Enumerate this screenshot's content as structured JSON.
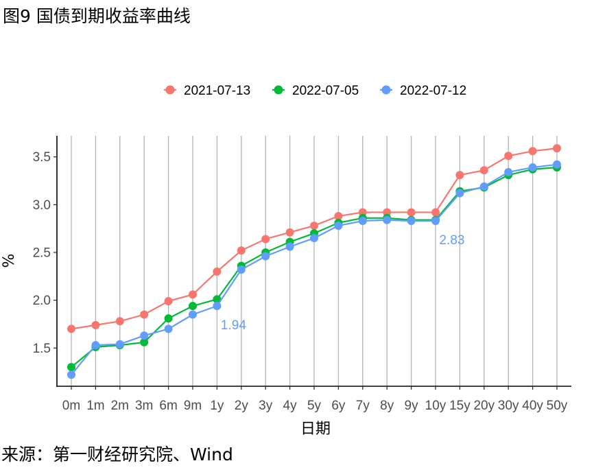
{
  "title": "图9 国债到期收益率曲线",
  "source": "来源：第一财经研究院、Wind",
  "colors": {
    "s2021": "#F8766D",
    "s20220705": "#00BA38",
    "s20220712": "#619CFF",
    "grid": "#b3b3b3",
    "axis": "#000000"
  },
  "chart_data": {
    "type": "line",
    "title": "图9 国债到期收益率曲线",
    "xlabel": "日期",
    "ylabel": "%",
    "categories": [
      "0m",
      "1m",
      "2m",
      "3m",
      "6m",
      "9m",
      "1y",
      "2y",
      "3y",
      "4y",
      "5y",
      "6y",
      "7y",
      "8y",
      "9y",
      "10y",
      "15y",
      "20y",
      "30y",
      "40y",
      "50y"
    ],
    "ylim": [
      1.1,
      3.72
    ],
    "yticks": [
      "1.5",
      "2.0",
      "2.5",
      "3.0",
      "3.5"
    ],
    "grid": "vertical",
    "legend": "top",
    "series": [
      {
        "name": "2021-07-13",
        "color": "#F8766D",
        "values": [
          1.7,
          1.74,
          1.78,
          1.85,
          1.99,
          2.06,
          2.3,
          2.52,
          2.64,
          2.71,
          2.78,
          2.88,
          2.92,
          2.92,
          2.92,
          2.92,
          3.31,
          3.36,
          3.51,
          3.56,
          3.59
        ]
      },
      {
        "name": "2022-07-05",
        "color": "#00BA38",
        "values": [
          1.3,
          1.51,
          1.53,
          1.56,
          1.81,
          1.94,
          2.01,
          2.36,
          2.5,
          2.61,
          2.7,
          2.81,
          2.86,
          2.86,
          2.84,
          2.84,
          3.14,
          3.18,
          3.31,
          3.37,
          3.39
        ]
      },
      {
        "name": "2022-07-12",
        "color": "#619CFF",
        "values": [
          1.22,
          1.53,
          1.54,
          1.63,
          1.7,
          1.85,
          1.94,
          2.32,
          2.46,
          2.56,
          2.65,
          2.78,
          2.83,
          2.84,
          2.83,
          2.83,
          3.12,
          3.19,
          3.34,
          3.39,
          3.42
        ]
      }
    ],
    "annotations": [
      {
        "text": "1.94",
        "category": "1y",
        "value": 1.94,
        "color": "#619CFF"
      },
      {
        "text": "2.83",
        "category": "10y",
        "value": 2.83,
        "color": "#619CFF"
      }
    ]
  }
}
